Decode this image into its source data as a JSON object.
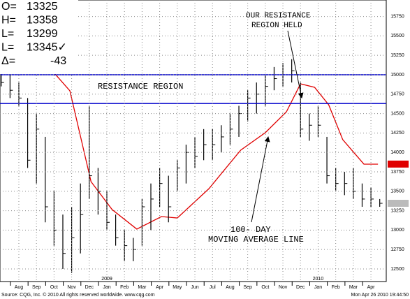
{
  "chart_data": {
    "type": "ohlc",
    "header": [
      {
        "label": "O=",
        "value": "13325"
      },
      {
        "label": "H=",
        "value": "13358"
      },
      {
        "label": "L=",
        "value": "13299"
      },
      {
        "label": "L=",
        "value": "13345✓"
      },
      {
        "label": "Δ=",
        "value": "-43"
      }
    ],
    "x": [
      -1,
      -0.5,
      0,
      0.5,
      1,
      1.5,
      2,
      2.5,
      3,
      3.5,
      4,
      4.5,
      5,
      5.5,
      6,
      6.5,
      7,
      7.5,
      8,
      8.5,
      9,
      9.5,
      10,
      10.5,
      11,
      11.5,
      12,
      12.5,
      13,
      13.5,
      14,
      14.5,
      15,
      15.5,
      16,
      16.5,
      17,
      17.5,
      18,
      18.5,
      19,
      19.5,
      20,
      20.5
    ],
    "high": [
      15150,
      15000,
      14900,
      14700,
      14500,
      14200,
      13500,
      13200,
      13300,
      13600,
      14600,
      13800,
      13500,
      13200,
      13000,
      12900,
      13400,
      13600,
      13800,
      13700,
      13900,
      14100,
      14200,
      14300,
      14300,
      14350,
      14500,
      14600,
      14800,
      14900,
      15000,
      15100,
      15150,
      15200,
      14900,
      14500,
      14600,
      14200,
      13800,
      13750,
      13800,
      13600,
      13550,
      13400
    ],
    "low": [
      14850,
      14700,
      14600,
      13800,
      13600,
      13100,
      12800,
      12500,
      12450,
      12700,
      13400,
      13200,
      13000,
      12800,
      12600,
      12600,
      12800,
      13000,
      13300,
      13100,
      13500,
      13600,
      13800,
      13900,
      13900,
      14000,
      14100,
      14200,
      14400,
      14500,
      14600,
      14800,
      14850,
      14900,
      14200,
      14150,
      14200,
      13600,
      13500,
      13450,
      13400,
      13300,
      13300,
      13300
    ],
    "close": [
      14900,
      14800,
      14700,
      13900,
      14300,
      13300,
      13000,
      12700,
      12900,
      13200,
      13700,
      13500,
      13100,
      12900,
      12800,
      12750,
      13300,
      13400,
      13600,
      13300,
      13800,
      14000,
      13950,
      14100,
      14100,
      14200,
      14300,
      14500,
      14700,
      14750,
      14850,
      14950,
      15000,
      15050,
      14300,
      14350,
      14350,
      13700,
      13600,
      13600,
      13500,
      13400,
      13400,
      13345
    ],
    "bar_color": "#000000",
    "ma": {
      "color": "#e00000",
      "x": [
        1.5,
        2.9,
        4.1,
        5.3,
        6.7,
        8.1,
        9.0,
        10.8,
        12.6,
        14.0,
        15.2,
        16.0,
        16.8,
        17.6,
        18.4,
        19.6,
        20.4
      ],
      "values": [
        15153,
        14793,
        13624,
        13264,
        13013,
        13174,
        13156,
        13534,
        14029,
        14254,
        14523,
        14883,
        14838,
        14613,
        14164,
        13849,
        13849
      ]
    },
    "resistance": {
      "color": "#0000cc",
      "values": [
        15000,
        14630
      ]
    },
    "xlim": [
      -1.07,
      20.87
    ],
    "ylim": [
      12338,
      15962
    ],
    "xticks": [
      {
        "value": 0,
        "label": "Aug"
      },
      {
        "value": 1,
        "label": "Sep"
      },
      {
        "value": 2,
        "label": "Oct"
      },
      {
        "value": 3,
        "label": "Nov"
      },
      {
        "value": 4,
        "label": "Dec"
      },
      {
        "value": 5,
        "label": "Jan"
      },
      {
        "value": 6,
        "label": "Feb"
      },
      {
        "value": 7,
        "label": "Mar"
      },
      {
        "value": 8,
        "label": "Apr"
      },
      {
        "value": 9,
        "label": "May"
      },
      {
        "value": 10,
        "label": "Jun"
      },
      {
        "value": 11,
        "label": "Jul"
      },
      {
        "value": 12,
        "label": "Aug"
      },
      {
        "value": 13,
        "label": "Sep"
      },
      {
        "value": 14,
        "label": "Oct"
      },
      {
        "value": 15,
        "label": "Nov"
      },
      {
        "value": 16,
        "label": "Dec"
      },
      {
        "value": 17,
        "label": "Jan"
      },
      {
        "value": 18,
        "label": "Feb"
      },
      {
        "value": 19,
        "label": "Mar"
      },
      {
        "value": 20,
        "label": "Apr"
      }
    ],
    "years": [
      {
        "value": 5,
        "label": "2009"
      },
      {
        "value": 17,
        "label": "2010"
      }
    ],
    "yticks": [
      12500,
      12750,
      13000,
      13250,
      13500,
      13750,
      14000,
      14250,
      14500,
      14750,
      15000,
      15250,
      15500,
      15750
    ],
    "grid": true,
    "last_labels": [
      {
        "value": 13850,
        "color": "#e00000"
      },
      {
        "value": 13345,
        "color": "#bbbbbb"
      }
    ],
    "annotations": {
      "resistance": "RESISTANCE REGION",
      "held": [
        "OUR RESISTANCE",
        "REGION HELD"
      ],
      "ma": [
        "100- DAY",
        "MOVING AVERAGE LINE"
      ]
    },
    "source": "Source: CQG, Inc. © 2010 All rights reserved worldwide. www.cqg.com",
    "timestamp": "Mon Apr 26 2010 19:44:50"
  }
}
